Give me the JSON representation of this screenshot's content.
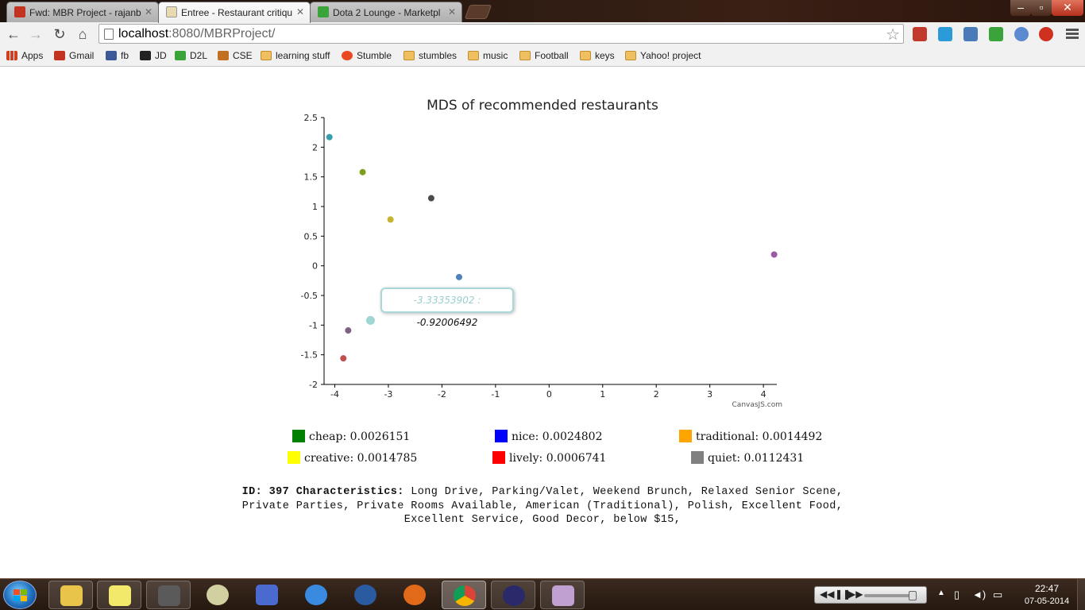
{
  "browser": {
    "tabs": [
      {
        "title": "Fwd: MBR Project - rajanb",
        "favicon_color": "#c23321"
      },
      {
        "title": "Entree - Restaurant critiqu",
        "favicon_color": "#e8d9b0"
      },
      {
        "title": "Dota 2 Lounge - Marketpl",
        "favicon_color": "#3aa33a"
      }
    ],
    "url_host": "localhost",
    "url_path": ":8080/MBRProject/",
    "bookmarks": [
      {
        "label": "Apps",
        "icon": "apps-icon"
      },
      {
        "label": "Gmail",
        "icon": "gmail-icon"
      },
      {
        "label": "fb",
        "icon": "facebook-icon"
      },
      {
        "label": "JD",
        "icon": "jd-icon"
      },
      {
        "label": "D2L",
        "icon": "d2l-icon"
      },
      {
        "label": "CSE",
        "icon": "cse-icon"
      },
      {
        "label": "learning stuff",
        "icon": "folder-icon"
      },
      {
        "label": "Stumble",
        "icon": "stumbleupon-icon"
      },
      {
        "label": "stumbles",
        "icon": "folder-icon"
      },
      {
        "label": "music",
        "icon": "folder-icon"
      },
      {
        "label": "Football",
        "icon": "folder-icon"
      },
      {
        "label": "keys",
        "icon": "folder-icon"
      },
      {
        "label": "Yahoo! project",
        "icon": "folder-icon"
      }
    ]
  },
  "chart_data": {
    "type": "scatter",
    "title": "MDS of recommended restaurants",
    "xlim": [
      -4.2,
      4.25
    ],
    "ylim": [
      -2,
      2.5
    ],
    "x_ticks": [
      "-4",
      "-3",
      "-2",
      "-1",
      "0",
      "1",
      "2",
      "3",
      "4"
    ],
    "y_ticks": [
      "2.5",
      "2",
      "1.5",
      "1",
      "0.5",
      "0",
      "-0.5",
      "-1",
      "-1.5",
      "-2"
    ],
    "points": [
      {
        "x": -4.1,
        "y": 2.17,
        "color": "#369ead"
      },
      {
        "x": -3.48,
        "y": 1.58,
        "color": "#7f9f1c"
      },
      {
        "x": -2.96,
        "y": 0.78,
        "color": "#c6b42e"
      },
      {
        "x": -2.2,
        "y": 1.14,
        "color": "#4a4a4a"
      },
      {
        "x": -1.68,
        "y": -0.19,
        "color": "#4f81bc"
      },
      {
        "x": 4.2,
        "y": 0.19,
        "color": "#9b59a6"
      },
      {
        "x": -3.75,
        "y": -1.09,
        "color": "#7f6084"
      },
      {
        "x": -3.33353902,
        "y": -0.92006492,
        "color": "#9fd6d4",
        "highlighted": true
      },
      {
        "x": -3.84,
        "y": -1.56,
        "color": "#c0504e"
      }
    ],
    "credit": "CanvasJS.com",
    "tooltip": {
      "x_label": "-3.33353902 :",
      "y_value": "-0.92006492"
    }
  },
  "legend": [
    {
      "label": "cheap: 0.0026151",
      "color": "#008000"
    },
    {
      "label": "nice: 0.0024802",
      "color": "#0000ff"
    },
    {
      "label": "traditional: 0.0014492",
      "color": "#ffa500"
    },
    {
      "label": "creative: 0.0014785",
      "color": "#ffff00"
    },
    {
      "label": "lively: 0.0006741",
      "color": "#ff0000"
    },
    {
      "label": "quiet: 0.0112431",
      "color": "#808080"
    }
  ],
  "details": {
    "id_label": "ID:",
    "id_value": "397",
    "characteristics_label": "Characteristics:",
    "characteristics_text": "Long Drive, Parking/Valet, Weekend Brunch, Relaxed Senior Scene, Private Parties, Private Rooms Available, American (Traditional), Polish, Excellent Food, Excellent Service, Good Decor, below $15,"
  },
  "taskbar": {
    "apps": [
      {
        "name": "explorer-icon",
        "color": "#e8c44a"
      },
      {
        "name": "sticky-notes-icon",
        "color": "#f2e96a"
      },
      {
        "name": "sublime-text-icon",
        "color": "#5a5a5a"
      },
      {
        "name": "pidgin-icon",
        "color": "#d0d0a0"
      },
      {
        "name": "network-icon",
        "color": "#4a6ad0"
      },
      {
        "name": "itunes-icon",
        "color": "#3a8ae0"
      },
      {
        "name": "globe-icon",
        "color": "#2a5aa0"
      },
      {
        "name": "firefox-icon",
        "color": "#e06a1a"
      },
      {
        "name": "chrome-icon",
        "color": "#3a9a3a"
      },
      {
        "name": "eclipse-icon",
        "color": "#2a2a6a"
      },
      {
        "name": "paint-icon",
        "color": "#c0a0d0"
      }
    ],
    "clock_time": "22:47",
    "clock_date": "07-05-2014"
  }
}
